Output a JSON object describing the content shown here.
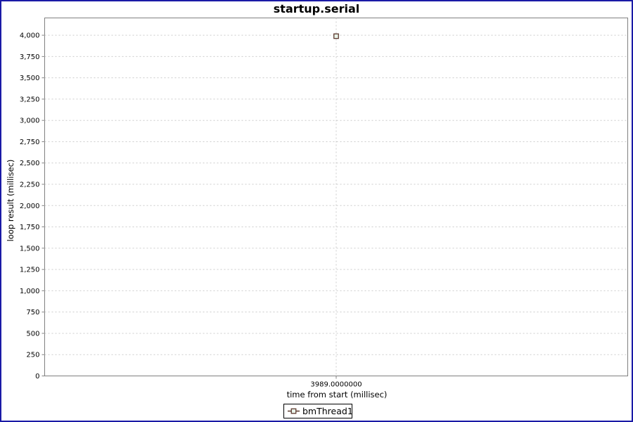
{
  "window": {
    "frame_border_color": "#1a1aa6",
    "background_color": "#ffffff"
  },
  "chart_data": {
    "type": "scatter",
    "title": "startup.serial",
    "xlabel": "time from start (millisec)",
    "ylabel": "loop result (millisec)",
    "grid": true,
    "legend_position": "bottom",
    "series": [
      {
        "name": "bmThread1",
        "marker": "square-outline",
        "stroke_color": "#5d3a2f",
        "marker_fill": "#e9f3e9",
        "points": [
          {
            "x": 3989.0,
            "y": 3989.0
          }
        ]
      }
    ],
    "x_axis": {
      "range": [
        3589,
        4389
      ],
      "ticks": [
        {
          "value": 3989.0,
          "label": "3989.0000000"
        }
      ]
    },
    "y_axis": {
      "range": [
        0,
        4203
      ],
      "ticks": [
        {
          "value": 0,
          "label": "0"
        },
        {
          "value": 250,
          "label": "250"
        },
        {
          "value": 500,
          "label": "500"
        },
        {
          "value": 750,
          "label": "750"
        },
        {
          "value": 1000,
          "label": "1,000"
        },
        {
          "value": 1250,
          "label": "1,250"
        },
        {
          "value": 1500,
          "label": "1,500"
        },
        {
          "value": 1750,
          "label": "1,750"
        },
        {
          "value": 2000,
          "label": "2,000"
        },
        {
          "value": 2250,
          "label": "2,250"
        },
        {
          "value": 2500,
          "label": "2,500"
        },
        {
          "value": 2750,
          "label": "2,750"
        },
        {
          "value": 3000,
          "label": "3,000"
        },
        {
          "value": 3250,
          "label": "3,250"
        },
        {
          "value": 3500,
          "label": "3,500"
        },
        {
          "value": 3750,
          "label": "3,750"
        },
        {
          "value": 4000,
          "label": "4,000"
        }
      ]
    },
    "colors": {
      "gridline": "#cccccc",
      "plot_border": "#808080",
      "tick_mark": "#808080",
      "tick_label": "#000000",
      "legend_border": "#000000",
      "legend_background": "#ffffff"
    }
  }
}
